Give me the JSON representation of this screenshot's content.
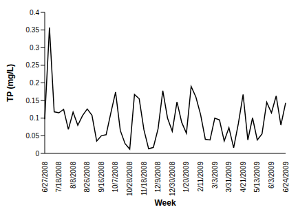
{
  "chart_data": {
    "type": "line",
    "x_label": "Week",
    "y_label": "TP (mg/L)",
    "categories": [
      "6/27/2008",
      null,
      null,
      "7/18/2008",
      null,
      null,
      "8/8/2008",
      null,
      null,
      "8/26/2008",
      null,
      null,
      "9/16/2008",
      null,
      null,
      "10/7/2008",
      null,
      null,
      "10/28/2008",
      null,
      null,
      "11/18/2008",
      null,
      null,
      "12/9/2008",
      null,
      null,
      "12/30/2008",
      null,
      null,
      "1/20/2009",
      null,
      null,
      "2/11/2009",
      null,
      null,
      "3/3/2009",
      null,
      null,
      "3/31/2009",
      null,
      null,
      "4/21/2009",
      null,
      null,
      "5/13/2009",
      null,
      null,
      "6/3/2009",
      null,
      null,
      "6/24/2009"
    ],
    "values": [
      0.097,
      0.357,
      0.118,
      0.115,
      0.125,
      0.068,
      0.117,
      0.08,
      0.107,
      0.126,
      0.108,
      0.035,
      0.05,
      0.053,
      0.115,
      0.174,
      0.065,
      0.028,
      0.012,
      0.167,
      0.155,
      0.067,
      0.013,
      0.017,
      0.07,
      0.178,
      0.1,
      0.063,
      0.146,
      0.088,
      0.057,
      0.19,
      0.16,
      0.11,
      0.04,
      0.038,
      0.1,
      0.095,
      0.035,
      0.073,
      0.016,
      0.085,
      0.167,
      0.038,
      0.101,
      0.038,
      0.055,
      0.145,
      0.115,
      0.163,
      0.08,
      0.143
    ],
    "color": "#000000",
    "marker": "none",
    "ylim": [
      0,
      0.4
    ],
    "yticks": [
      0,
      0.05,
      0.1,
      0.15,
      0.2,
      0.25,
      0.3,
      0.35,
      0.4
    ],
    "grid": false
  }
}
